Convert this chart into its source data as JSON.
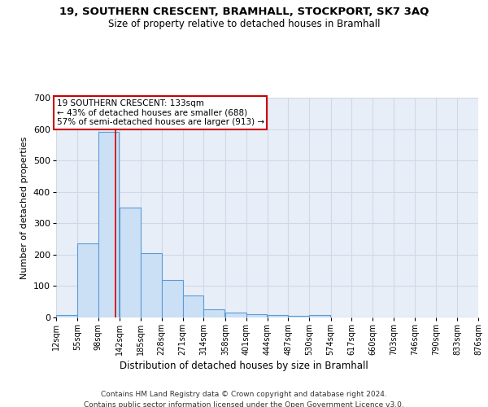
{
  "title": "19, SOUTHERN CRESCENT, BRAMHALL, STOCKPORT, SK7 3AQ",
  "subtitle": "Size of property relative to detached houses in Bramhall",
  "xlabel": "Distribution of detached houses by size in Bramhall",
  "ylabel": "Number of detached properties",
  "footer_line1": "Contains HM Land Registry data © Crown copyright and database right 2024.",
  "footer_line2": "Contains public sector information licensed under the Open Government Licence v3.0.",
  "bar_values": [
    8,
    235,
    590,
    350,
    205,
    118,
    70,
    25,
    15,
    10,
    8,
    5,
    8,
    0,
    0,
    0,
    0,
    0,
    0,
    0
  ],
  "bin_edges": [
    12,
    55,
    98,
    142,
    185,
    228,
    271,
    314,
    358,
    401,
    444,
    487,
    530,
    574,
    617,
    660,
    703,
    746,
    790,
    833,
    876
  ],
  "bar_facecolor": "#cce0f5",
  "bar_edgecolor": "#5b9bd5",
  "grid_color": "#d0d8e8",
  "background_color": "#e8eef8",
  "vline_x": 133,
  "vline_color": "#cc0000",
  "annotation_text": "19 SOUTHERN CRESCENT: 133sqm\n← 43% of detached houses are smaller (688)\n57% of semi-detached houses are larger (913) →",
  "annotation_box_edgecolor": "#cc0000",
  "ylim": [
    0,
    700
  ],
  "yticks": [
    0,
    100,
    200,
    300,
    400,
    500,
    600,
    700
  ]
}
